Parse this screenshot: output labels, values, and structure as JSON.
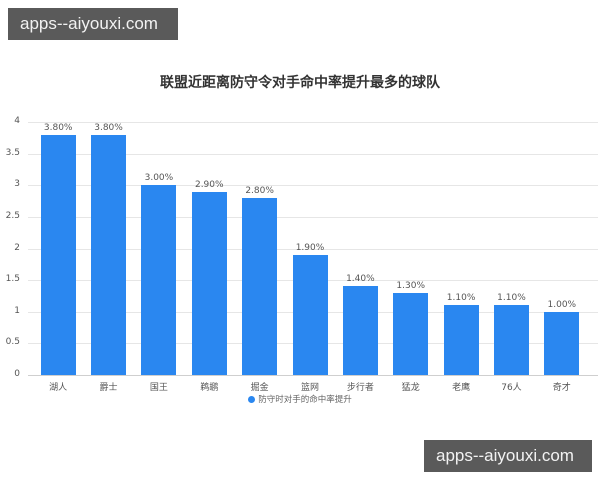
{
  "watermark": {
    "top": "apps--aiyouxi.com",
    "bottom": "apps--aiyouxi.com"
  },
  "chart_data": {
    "type": "bar",
    "title": "联盟近距离防守令对手命中率提升最多的球队",
    "xlabel": "",
    "ylabel": "",
    "ylim": [
      0,
      4
    ],
    "yticks": [
      "0",
      "0.5",
      "1",
      "1.5",
      "2",
      "2.5",
      "3",
      "3.5",
      "4"
    ],
    "grid": true,
    "legend_position": "bottom",
    "categories": [
      "湖人",
      "爵士",
      "国王",
      "鹈鹕",
      "掘金",
      "篮网",
      "步行者",
      "猛龙",
      "老鹰",
      "76人",
      "奇才"
    ],
    "series": [
      {
        "name": "防守时对手的命中率提升",
        "values": [
          3.8,
          3.8,
          3.0,
          2.9,
          2.8,
          1.9,
          1.4,
          1.3,
          1.1,
          1.1,
          1.0
        ],
        "labels": [
          "3.80%",
          "3.80%",
          "3.00%",
          "2.90%",
          "2.80%",
          "1.90%",
          "1.40%",
          "1.30%",
          "1.10%",
          "1.10%",
          "1.00%"
        ],
        "color": "#2a87f0"
      }
    ]
  }
}
